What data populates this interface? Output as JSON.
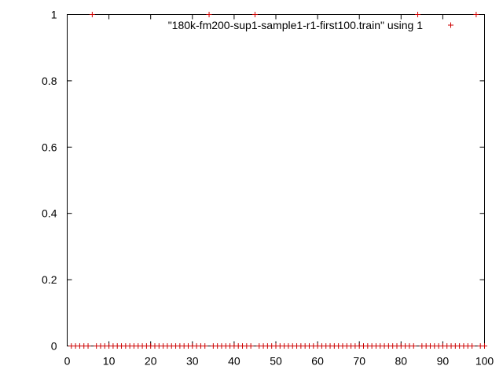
{
  "chart_data": {
    "type": "scatter",
    "title": "",
    "xlabel": "",
    "ylabel": "",
    "xlim": [
      0,
      100
    ],
    "ylim": [
      0,
      1
    ],
    "grid": false,
    "legend_position": "top-right",
    "x_ticks": [
      0,
      10,
      20,
      30,
      40,
      50,
      60,
      70,
      80,
      90,
      100
    ],
    "x_tick_labels": [
      "0",
      "10",
      "20",
      "30",
      "40",
      "50",
      "60",
      "70",
      "80",
      "90",
      "100"
    ],
    "y_ticks": [
      0,
      0.2,
      0.4,
      0.6,
      0.8,
      1
    ],
    "y_tick_labels": [
      "0",
      "0.2",
      "0.4",
      "0.6",
      "0.8",
      "1"
    ],
    "marker": "+",
    "series": [
      {
        "name": "\"180k-fm200-sup1-sample1-r1-first100.train\" using 1",
        "color": "#cc0000",
        "x": [
          1,
          2,
          3,
          4,
          5,
          6,
          7,
          8,
          9,
          10,
          11,
          12,
          13,
          14,
          15,
          16,
          17,
          18,
          19,
          20,
          21,
          22,
          23,
          24,
          25,
          26,
          27,
          28,
          29,
          30,
          31,
          32,
          33,
          34,
          35,
          36,
          37,
          38,
          39,
          40,
          41,
          42,
          43,
          44,
          45,
          46,
          47,
          48,
          49,
          50,
          51,
          52,
          53,
          54,
          55,
          56,
          57,
          58,
          59,
          60,
          61,
          62,
          63,
          64,
          65,
          66,
          67,
          68,
          69,
          70,
          71,
          72,
          73,
          74,
          75,
          76,
          77,
          78,
          79,
          80,
          81,
          82,
          83,
          84,
          85,
          86,
          87,
          88,
          89,
          90,
          91,
          92,
          93,
          94,
          95,
          96,
          97,
          98,
          99,
          100
        ],
        "y": [
          0,
          0,
          0,
          0,
          0,
          1,
          0,
          0,
          0,
          0,
          0,
          0,
          0,
          0,
          0,
          0,
          0,
          0,
          0,
          0,
          0,
          0,
          0,
          0,
          0,
          0,
          0,
          0,
          0,
          0,
          0,
          0,
          0,
          1,
          0,
          0,
          0,
          0,
          0,
          0,
          0,
          0,
          0,
          0,
          1,
          0,
          0,
          0,
          0,
          0,
          0,
          0,
          0,
          0,
          0,
          0,
          0,
          0,
          0,
          0,
          0,
          0,
          0,
          0,
          0,
          0,
          0,
          0,
          0,
          0,
          0,
          0,
          0,
          0,
          0,
          0,
          0,
          0,
          0,
          0,
          0,
          0,
          0,
          1,
          0,
          0,
          0,
          0,
          0,
          0,
          0,
          0,
          0,
          0,
          0,
          0,
          0,
          1,
          0,
          0
        ]
      }
    ]
  },
  "colors": {
    "axis": "#000000",
    "marker": "#cc0000"
  }
}
